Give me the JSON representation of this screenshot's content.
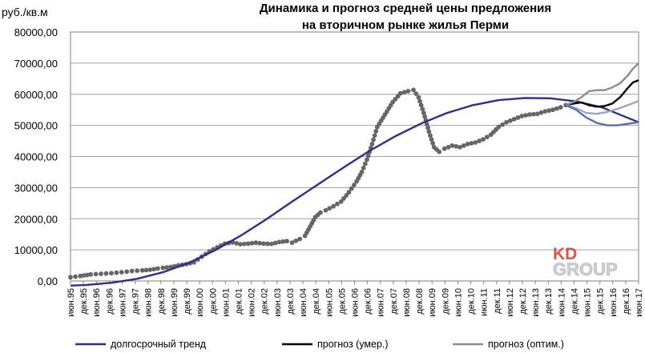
{
  "chart_data": {
    "type": "line",
    "title_lines": [
      "Динамика и прогноз средней цены предложения",
      "на вторичном рынке жилья Перми"
    ],
    "ylabel": "руб./кв.м",
    "ylim": [
      0,
      80000
    ],
    "y_ticks": [
      "0,00",
      "10000,00",
      "20000,00",
      "30000,00",
      "40000,00",
      "50000,00",
      "60000,00",
      "70000,00",
      "80000,00"
    ],
    "x_range": [
      1995.42,
      2017.42
    ],
    "x_ticks": [
      "июн.95",
      "дек.95",
      "июн.96",
      "дек.96",
      "июн.97",
      "дек.97",
      "июн.98",
      "дек.98",
      "июн.99",
      "дек.99",
      "июн.00",
      "дек.00",
      "июн.01",
      "дек.01",
      "июн.02",
      "дек.02",
      "июн.03",
      "дек.03",
      "июн.04",
      "дек.04",
      "июн.05",
      "дек.05",
      "июн.06",
      "дек.06",
      "июн.07",
      "дек.07",
      "июн.08",
      "дек.08",
      "июн.09",
      "дек.09",
      "июн.10",
      "дек.10",
      "июн.11",
      "дек.11",
      "июн.12",
      "дек.12",
      "июн.13",
      "дек.13",
      "июн.14",
      "дек.14",
      "июн.15",
      "дек.15",
      "июн.16",
      "дек.16",
      "июн.17",
      "дек.17"
    ],
    "grid": true,
    "legend_position": "bottom",
    "series": [
      {
        "name": "",
        "kind": "dots",
        "color": "#666666",
        "points": [
          [
            1995.42,
            1200
          ],
          [
            1995.8,
            1600
          ],
          [
            1996.2,
            2100
          ],
          [
            1996.6,
            2300
          ],
          [
            1997.0,
            2500
          ],
          [
            1997.4,
            2800
          ],
          [
            1997.8,
            3200
          ],
          [
            1998.2,
            3400
          ],
          [
            1998.5,
            3600
          ],
          [
            1998.8,
            4000
          ],
          [
            1999.0,
            4200
          ],
          [
            1999.3,
            4500
          ],
          [
            1999.6,
            5000
          ],
          [
            1999.9,
            5400
          ],
          [
            2000.2,
            6000
          ],
          [
            2000.5,
            7800
          ],
          [
            2000.8,
            9500
          ],
          [
            2001.1,
            10800
          ],
          [
            2001.4,
            12000
          ],
          [
            2001.7,
            12400
          ],
          [
            2002.0,
            11800
          ],
          [
            2002.3,
            12000
          ],
          [
            2002.6,
            12300
          ],
          [
            2002.9,
            12000
          ],
          [
            2003.2,
            11900
          ],
          [
            2003.5,
            12500
          ],
          [
            2003.8,
            12800
          ],
          [
            2004.0,
            12300
          ],
          [
            2004.3,
            13500
          ],
          [
            2004.5,
            14500
          ],
          [
            2004.7,
            17500
          ],
          [
            2004.9,
            20500
          ],
          [
            2005.1,
            22000
          ],
          [
            2005.3,
            22700
          ],
          [
            2005.6,
            24000
          ],
          [
            2005.9,
            25500
          ],
          [
            2006.2,
            28500
          ],
          [
            2006.5,
            32000
          ],
          [
            2006.7,
            35000
          ],
          [
            2006.9,
            39000
          ],
          [
            2007.1,
            44000
          ],
          [
            2007.3,
            49500
          ],
          [
            2007.6,
            53500
          ],
          [
            2007.9,
            57500
          ],
          [
            2008.2,
            60300
          ],
          [
            2008.5,
            61000
          ],
          [
            2008.7,
            61400
          ],
          [
            2008.9,
            59000
          ],
          [
            2009.1,
            54000
          ],
          [
            2009.3,
            48000
          ],
          [
            2009.5,
            43000
          ],
          [
            2009.7,
            41500
          ],
          [
            2009.9,
            42500
          ],
          [
            2010.2,
            43500
          ],
          [
            2010.5,
            43000
          ],
          [
            2010.8,
            44000
          ],
          [
            2011.1,
            44500
          ],
          [
            2011.4,
            45500
          ],
          [
            2011.7,
            47000
          ],
          [
            2012.0,
            49500
          ],
          [
            2012.3,
            51000
          ],
          [
            2012.6,
            52000
          ],
          [
            2012.9,
            53000
          ],
          [
            2013.2,
            53500
          ],
          [
            2013.5,
            53700
          ],
          [
            2013.8,
            54500
          ],
          [
            2014.1,
            55000
          ],
          [
            2014.4,
            55800
          ],
          [
            2014.6,
            56500
          ]
        ]
      },
      {
        "name": "долгосрочный тренд",
        "kind": "line",
        "color": "#2e2e8c",
        "points": [
          [
            1995.42,
            -1500
          ],
          [
            1996.0,
            -1300
          ],
          [
            1997.0,
            -600
          ],
          [
            1998.0,
            700
          ],
          [
            1999.0,
            2800
          ],
          [
            2000.0,
            5800
          ],
          [
            2001.0,
            9800
          ],
          [
            2002.0,
            14500
          ],
          [
            2003.0,
            19800
          ],
          [
            2004.0,
            25500
          ],
          [
            2005.0,
            31000
          ],
          [
            2006.0,
            36500
          ],
          [
            2007.0,
            41800
          ],
          [
            2008.0,
            46500
          ],
          [
            2009.0,
            50600
          ],
          [
            2010.0,
            54000
          ],
          [
            2011.0,
            56500
          ],
          [
            2012.0,
            58100
          ],
          [
            2013.0,
            58800
          ],
          [
            2014.0,
            58700
          ],
          [
            2015.0,
            57700
          ],
          [
            2016.0,
            55800
          ],
          [
            2017.42,
            51000
          ]
        ]
      },
      {
        "name": "прогноз (умер.)",
        "kind": "line",
        "color": "#000000",
        "points": [
          [
            2014.6,
            56500
          ],
          [
            2014.9,
            57000
          ],
          [
            2015.2,
            57400
          ],
          [
            2015.5,
            56500
          ],
          [
            2015.8,
            56000
          ],
          [
            2016.1,
            56200
          ],
          [
            2016.4,
            57000
          ],
          [
            2016.7,
            59000
          ],
          [
            2017.0,
            62000
          ],
          [
            2017.2,
            63800
          ],
          [
            2017.42,
            64500
          ]
        ]
      },
      {
        "name": "прогноз (оптим.)",
        "kind": "line",
        "color": "#8c8c8c",
        "points": [
          [
            2014.6,
            56500
          ],
          [
            2014.9,
            57500
          ],
          [
            2015.2,
            59000
          ],
          [
            2015.5,
            61000
          ],
          [
            2015.8,
            61300
          ],
          [
            2016.1,
            61300
          ],
          [
            2016.4,
            62200
          ],
          [
            2016.7,
            63500
          ],
          [
            2017.0,
            66000
          ],
          [
            2017.2,
            68200
          ],
          [
            2017.42,
            70000
          ]
        ]
      },
      {
        "name": "",
        "kind": "line",
        "color": "#9da4c8",
        "points": [
          [
            2014.6,
            56500
          ],
          [
            2015.0,
            55500
          ],
          [
            2015.4,
            54000
          ],
          [
            2015.8,
            53700
          ],
          [
            2016.2,
            54300
          ],
          [
            2016.6,
            55300
          ],
          [
            2017.0,
            56500
          ],
          [
            2017.42,
            57800
          ]
        ]
      },
      {
        "name": "",
        "kind": "line",
        "color": "#5a6fb0",
        "points": [
          [
            2014.6,
            56500
          ],
          [
            2015.0,
            55000
          ],
          [
            2015.4,
            52500
          ],
          [
            2015.8,
            50800
          ],
          [
            2016.2,
            50000
          ],
          [
            2016.6,
            50000
          ],
          [
            2017.0,
            50500
          ],
          [
            2017.42,
            51000
          ]
        ]
      }
    ]
  },
  "logo": {
    "line1": "KD",
    "line2": "GROUP"
  }
}
